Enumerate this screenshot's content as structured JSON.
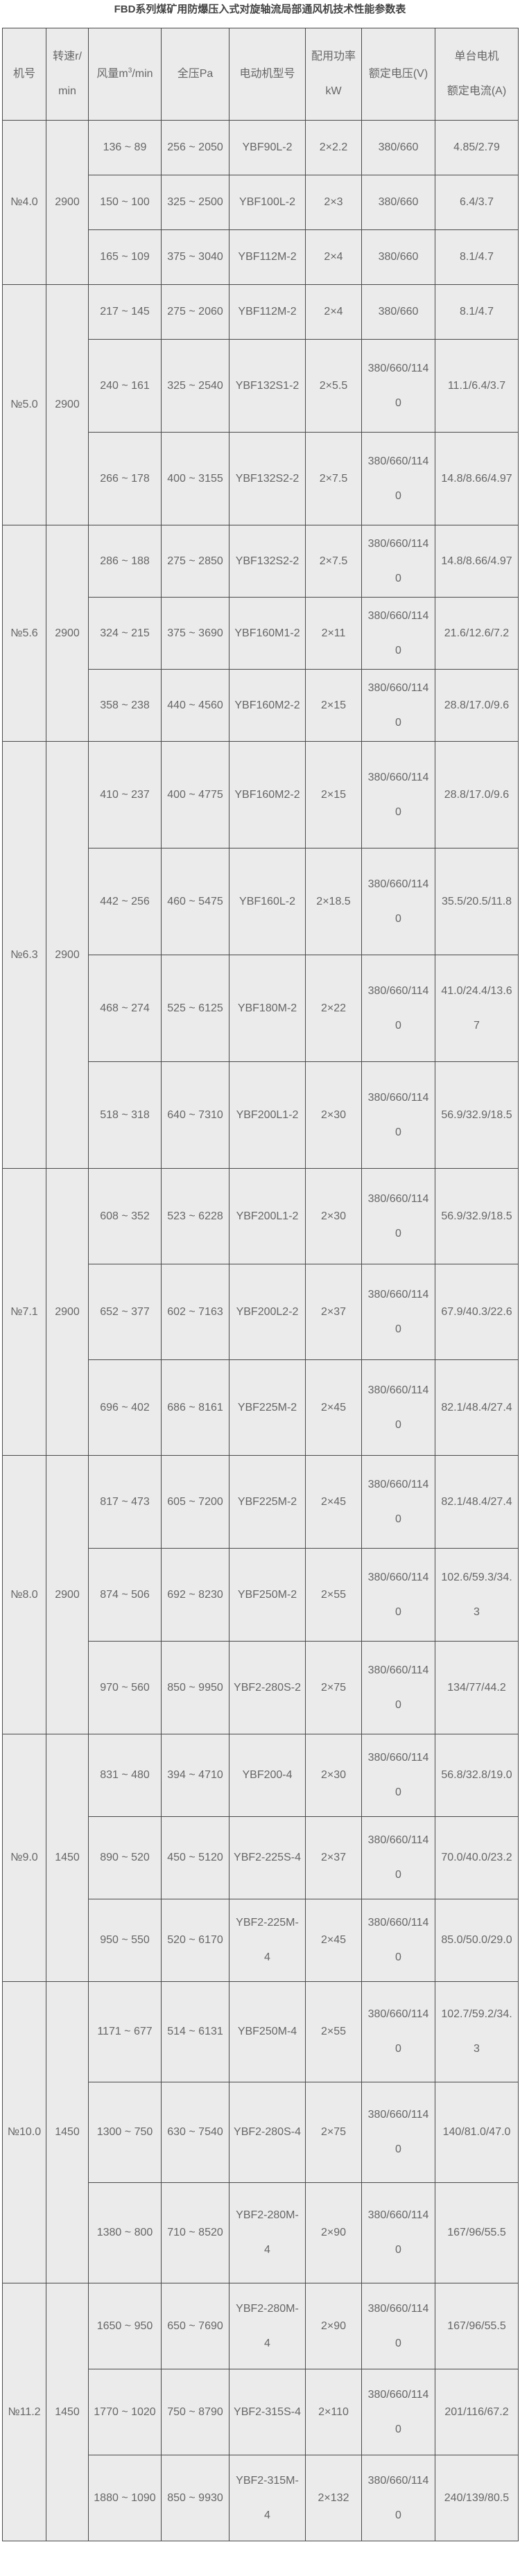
{
  "title": "FBD系列煤矿用防爆压入式对旋轴流局部通风机技术性能参数表",
  "headers": {
    "model": "机号",
    "speed": "转速r/min",
    "airflow_prefix": "风量m",
    "airflow_sup": "3",
    "airflow_suffix": "/min",
    "pressure": "全压Pa",
    "motor": "电动机型号",
    "power": "配用功率kW",
    "voltage": "额定电压(V)",
    "current_line1": "单台电机",
    "current_line2": "额定电流(A)"
  },
  "sections": [
    {
      "model": "№4.0",
      "speed": "2900",
      "rows": [
        {
          "airflow": "136 ~ 89",
          "pressure": "256 ~ 2050",
          "motor": "YBF90L-2",
          "power": "2×2.2",
          "voltage": "380/660",
          "current": "4.85/2.79"
        },
        {
          "airflow": "150 ~ 100",
          "pressure": "325 ~ 2500",
          "motor": "YBF100L-2",
          "power": "2×3",
          "voltage": "380/660",
          "current": "6.4/3.7"
        },
        {
          "airflow": "165 ~ 109",
          "pressure": "375 ~ 3040",
          "motor": "YBF112M-2",
          "power": "2×4",
          "voltage": "380/660",
          "current": "8.1/4.7"
        }
      ]
    },
    {
      "model": "№5.0",
      "speed": "2900",
      "rows": [
        {
          "airflow": "217 ~ 145",
          "pressure": "275 ~ 2060",
          "motor": "YBF112M-2",
          "power": "2×4",
          "voltage": "380/660",
          "current": "8.1/4.7"
        },
        {
          "airflow": "240 ~ 161",
          "pressure": "325 ~ 2540",
          "motor": "YBF132S1-2",
          "power": "2×5.5",
          "voltage": "380/660/1140",
          "current": "11.1/6.4/3.7"
        },
        {
          "airflow": "266 ~ 178",
          "pressure": "400 ~ 3155",
          "motor": "YBF132S2-2",
          "power": "2×7.5",
          "voltage": "380/660/1140",
          "current": "14.8/8.66/4.97"
        }
      ]
    },
    {
      "model": "№5.6",
      "speed": "2900",
      "rows": [
        {
          "airflow": "286 ~ 188",
          "pressure": "275 ~ 2850",
          "motor": "YBF132S2-2",
          "power": "2×7.5",
          "voltage": "380/660/1140",
          "current": "14.8/8.66/4.97"
        },
        {
          "airflow": "324 ~ 215",
          "pressure": "375 ~ 3690",
          "motor": "YBF160M1-2",
          "power": "2×11",
          "voltage": "380/660/1140",
          "current": "21.6/12.6/7.2"
        },
        {
          "airflow": "358 ~ 238",
          "pressure": "440 ~ 4560",
          "motor": "YBF160M2-2",
          "power": "2×15",
          "voltage": "380/660/1140",
          "current": "28.8/17.0/9.6"
        }
      ]
    },
    {
      "model": "№6.3",
      "speed": "2900",
      "rows": [
        {
          "airflow": "410 ~ 237",
          "pressure": "400 ~ 4775",
          "motor": "YBF160M2-2",
          "power": "2×15",
          "voltage": "380/660/1140",
          "current": "28.8/17.0/9.6"
        },
        {
          "airflow": "442 ~ 256",
          "pressure": "460 ~ 5475",
          "motor": "YBF160L-2",
          "power": "2×18.5",
          "voltage": "380/660/1140",
          "current": "35.5/20.5/11.8"
        },
        {
          "airflow": "468 ~ 274",
          "pressure": "525 ~ 6125",
          "motor": "YBF180M-2",
          "power": "2×22",
          "voltage": "380/660/1140",
          "current": "41.0/24.4/13.67"
        },
        {
          "airflow": "518 ~ 318",
          "pressure": "640 ~ 7310",
          "motor": "YBF200L1-2",
          "power": "2×30",
          "voltage": "380/660/1140",
          "current": "56.9/32.9/18.5"
        }
      ]
    },
    {
      "model": "№7.1",
      "speed": "2900",
      "rows": [
        {
          "airflow": "608 ~ 352",
          "pressure": "523 ~ 6228",
          "motor": "YBF200L1-2",
          "power": "2×30",
          "voltage": "380/660/1140",
          "current": "56.9/32.9/18.5"
        },
        {
          "airflow": "652 ~ 377",
          "pressure": "602 ~ 7163",
          "motor": "YBF200L2-2",
          "power": "2×37",
          "voltage": "380/660/1140",
          "current": "67.9/40.3/22.6"
        },
        {
          "airflow": "696 ~ 402",
          "pressure": "686 ~ 8161",
          "motor": "YBF225M-2",
          "power": "2×45",
          "voltage": "380/660/1140",
          "current": "82.1/48.4/27.4"
        }
      ]
    },
    {
      "model": "№8.0",
      "speed": "2900",
      "rows": [
        {
          "airflow": "817 ~ 473",
          "pressure": "605 ~ 7200",
          "motor": "YBF225M-2",
          "power": "2×45",
          "voltage": "380/660/1140",
          "current": "82.1/48.4/27.4"
        },
        {
          "airflow": "874 ~ 506",
          "pressure": "692 ~ 8230",
          "motor": "YBF250M-2",
          "power": "2×55",
          "voltage": "380/660/1140",
          "current": "102.6/59.3/34.3"
        },
        {
          "airflow": "970 ~ 560",
          "pressure": "850 ~ 9950",
          "motor": "YBF2-280S-2",
          "power": "2×75",
          "voltage": "380/660/1140",
          "current": "134/77/44.2"
        }
      ]
    },
    {
      "model": "№9.0",
      "speed": "1450",
      "rows": [
        {
          "airflow": "831 ~ 480",
          "pressure": "394 ~ 4710",
          "motor": "YBF200-4",
          "power": "2×30",
          "voltage": "380/660/1140",
          "current": "56.8/32.8/19.0"
        },
        {
          "airflow": "890 ~ 520",
          "pressure": "450 ~ 5120",
          "motor": "YBF2-225S-4",
          "power": "2×37",
          "voltage": "380/660/1140",
          "current": "70.0/40.0/23.2"
        },
        {
          "airflow": "950 ~ 550",
          "pressure": "520 ~ 6170",
          "motor": "YBF2-225M-4",
          "power": "2×45",
          "voltage": "380/660/1140",
          "current": "85.0/50.0/29.0"
        }
      ]
    },
    {
      "model": "№10.0",
      "speed": "1450",
      "rows": [
        {
          "airflow": "1171 ~ 677",
          "pressure": "514 ~ 6131",
          "motor": "YBF250M-4",
          "power": "2×55",
          "voltage": "380/660/1140",
          "current": "102.7/59.2/34.3"
        },
        {
          "airflow": "1300 ~ 750",
          "pressure": "630 ~ 7540",
          "motor": "YBF2-280S-4",
          "power": "2×75",
          "voltage": "380/660/1140",
          "current": "140/81.0/47.0"
        },
        {
          "airflow": "1380 ~ 800",
          "pressure": "710 ~ 8520",
          "motor": "YBF2-280M-4",
          "power": "2×90",
          "voltage": "380/660/1140",
          "current": "167/96/55.5"
        }
      ]
    },
    {
      "model": "№11.2",
      "speed": "1450",
      "rows": [
        {
          "airflow": "1650 ~ 950",
          "pressure": "650 ~ 7690",
          "motor": "YBF2-280M-4",
          "power": "2×90",
          "voltage": "380/660/1140",
          "current": "167/96/55.5"
        },
        {
          "airflow": "1770 ~ 1020",
          "pressure": "750 ~ 8790",
          "motor": "YBF2-315S-4",
          "power": "2×110",
          "voltage": "380/660/1140",
          "current": "201/116/67.2"
        },
        {
          "airflow": "1880 ~ 1090",
          "pressure": "850 ~ 9930",
          "motor": "YBF2-315M-4",
          "power": "2×132",
          "voltage": "380/660/1140",
          "current": "240/139/80.5"
        }
      ]
    }
  ]
}
